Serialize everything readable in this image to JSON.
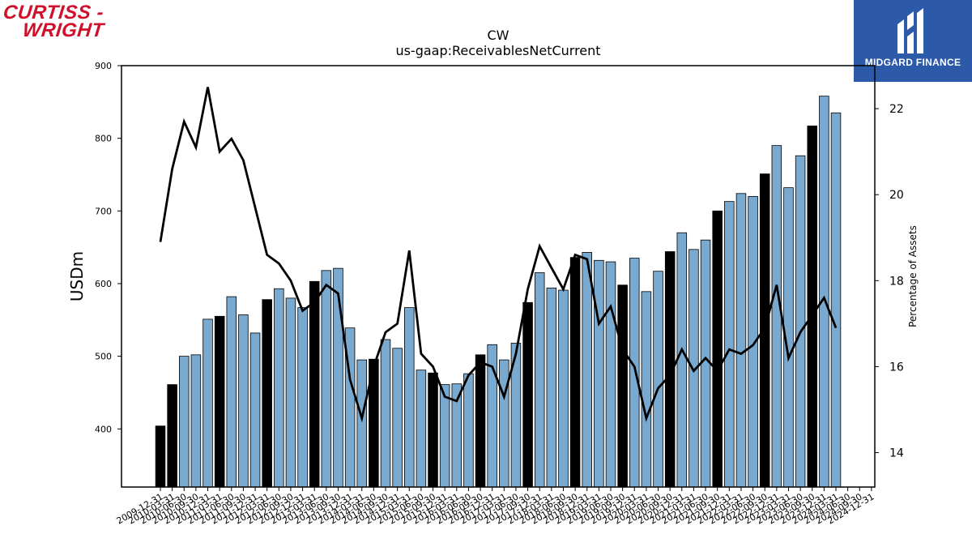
{
  "logos": {
    "company_line1": "CURTISS -",
    "company_line2": "WRIGHT",
    "brand": "MIDGARD FINANCE"
  },
  "chart_data": {
    "type": "bar",
    "title": "CW",
    "subtitle": "us-gaap:ReceivablesNetCurrent",
    "ylabel": "USDm",
    "y2label": "Percentage of Assets",
    "ylim": [
      320,
      900
    ],
    "y2lim": [
      13.2,
      23.0
    ],
    "yticks": [
      400,
      500,
      600,
      700,
      800,
      900
    ],
    "y2ticks": [
      14,
      16,
      18,
      20,
      22
    ],
    "colors": {
      "annual_bar": "#000000",
      "quarter_bar": "#7aa9d0",
      "line": "#000000"
    },
    "legend": "none",
    "grid": false,
    "categories": [
      "2009-12-31",
      "2010-03-31",
      "2010-06-30",
      "2010-09-30",
      "2010-12-31",
      "2011-03-31",
      "2011-06-30",
      "2011-09-30",
      "2011-12-31",
      "2012-03-31",
      "2012-06-30",
      "2012-09-30",
      "2012-12-31",
      "2013-03-31",
      "2013-06-30",
      "2013-09-30",
      "2013-12-31",
      "2014-03-31",
      "2014-06-30",
      "2014-09-30",
      "2014-12-31",
      "2015-03-31",
      "2015-06-30",
      "2015-09-30",
      "2015-12-31",
      "2016-03-31",
      "2016-06-30",
      "2016-09-30",
      "2016-12-31",
      "2017-03-31",
      "2017-06-30",
      "2017-09-30",
      "2017-12-31",
      "2018-03-31",
      "2018-06-30",
      "2018-09-30",
      "2018-12-31",
      "2019-03-31",
      "2019-06-30",
      "2019-09-30",
      "2019-12-31",
      "2020-03-31",
      "2020-06-30",
      "2020-09-30",
      "2020-12-31",
      "2021-03-31",
      "2021-06-30",
      "2021-09-30",
      "2021-12-31",
      "2022-03-31",
      "2022-06-30",
      "2022-09-30",
      "2022-12-31",
      "2023-03-31",
      "2023-06-30",
      "2023-09-30",
      "2023-12-31",
      "2024-03-31",
      "2024-06-30",
      "2024-09-30",
      "2024-12-31"
    ],
    "x_ticklabels": [
      "2009-12-31",
      "2010-03-31",
      "2010-06-30",
      "2010-09-30",
      "2010-12-31",
      "2011-03-31",
      "2011-06-30",
      "2011-09-30",
      "2011-12-31",
      "2012-03-31",
      "2012-06-30",
      "2012-09-30",
      "2012-12-31",
      "2013-03-31",
      "2013-06-30",
      "2013-09-30",
      "2013-12-31",
      "2014-03-31",
      "2014-06-30",
      "2014-09-30",
      "2014-12-31",
      "2015-03-31",
      "2015-06-30",
      "2015-09-30",
      "2015-12-31",
      "2016-03-31",
      "2016-06-30",
      "2016-09-30",
      "2016-12-31",
      "2017-03-31",
      "2017-06-30",
      "2017-09-30",
      "2017-12-31",
      "2018-03-31",
      "2018-06-30",
      "2018-09-30",
      "2018-12-31",
      "2019-03-31",
      "2019-06-30",
      "2019-09-30",
      "2019-12-31",
      "2020-03-31",
      "2020-06-30",
      "2020-09-30",
      "2020-12-31",
      "2021-03-31",
      "2021-06-30",
      "2021-09-30",
      "2021-12-31",
      "2022-03-31",
      "2022-06-30",
      "2022-09-30",
      "2022-12-31",
      "2023-03-31",
      "2023-06-30",
      "2023-09-30",
      "2023-12-31",
      "2024-03-31",
      "2024-06-30",
      "2024-09-30",
      "2024-12-31"
    ],
    "annual": [
      true,
      true,
      false,
      false,
      false,
      true,
      false,
      false,
      false,
      true,
      false,
      false,
      false,
      true,
      false,
      false,
      false,
      false,
      true,
      false,
      false,
      false,
      false,
      true,
      false,
      false,
      false,
      true,
      false,
      false,
      false,
      true,
      false,
      false,
      false,
      true,
      false,
      false,
      false,
      true,
      false,
      false,
      false,
      true,
      false,
      false,
      false,
      true,
      false,
      false,
      false,
      true,
      false,
      false,
      false,
      true,
      false,
      false,
      false,
      false,
      true
    ],
    "series": [
      {
        "name": "USDm",
        "axis": "left",
        "kind": "bar",
        "values": [
          404,
          461,
          500,
          502,
          551,
          555,
          582,
          557,
          532,
          578,
          593,
          580,
          567,
          603,
          618,
          621,
          539,
          495,
          496,
          523,
          511,
          567,
          481,
          477,
          461,
          462,
          476,
          502,
          516,
          495,
          518,
          574,
          615,
          594,
          591,
          636,
          643,
          632,
          630,
          598,
          635,
          589,
          617,
          644,
          670,
          647,
          660,
          700,
          713,
          724,
          720,
          751,
          790,
          732,
          776,
          817,
          858,
          835,
          null,
          null,
          null
        ]
      },
      {
        "name": "Percentage of Assets",
        "axis": "right",
        "kind": "line",
        "values": [
          18.9,
          20.6,
          21.7,
          21.1,
          22.5,
          21.0,
          21.3,
          20.8,
          19.7,
          18.6,
          18.4,
          18.0,
          17.3,
          17.5,
          17.9,
          17.7,
          15.7,
          14.8,
          16.0,
          16.8,
          17.0,
          18.7,
          16.3,
          16.0,
          15.3,
          15.2,
          15.8,
          16.1,
          16.0,
          15.3,
          16.3,
          17.8,
          18.8,
          18.3,
          17.8,
          18.6,
          18.5,
          17.0,
          17.4,
          16.4,
          16.0,
          14.8,
          15.5,
          15.8,
          16.4,
          15.9,
          16.2,
          15.9,
          16.4,
          16.3,
          16.5,
          16.9,
          17.9,
          16.2,
          16.8,
          17.2,
          17.6,
          16.9,
          null,
          null,
          null
        ]
      }
    ]
  }
}
